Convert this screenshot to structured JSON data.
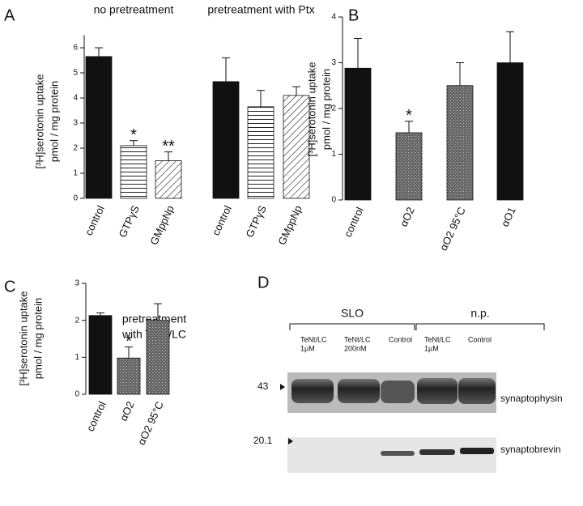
{
  "chart_data": [
    {
      "type": "bar",
      "panel": "A",
      "ylabel": [
        "[³H]serotonin uptake",
        "pmol / mg protein"
      ],
      "ylim": [
        0,
        6.5
      ],
      "yticks": [
        0,
        1,
        2,
        3,
        4,
        5,
        6
      ],
      "groups": [
        {
          "title": "no pretreatment",
          "categories": [
            "control",
            "GTPγS",
            "GMppNp"
          ],
          "values": [
            5.65,
            2.1,
            1.5
          ],
          "errors": [
            0.35,
            0.2,
            0.35
          ],
          "significance": [
            null,
            "*",
            "**"
          ],
          "patterns": [
            "solid",
            "horizontal",
            "diagonal"
          ]
        },
        {
          "title": "pretreatment with Ptx",
          "categories": [
            "control",
            "GTPγS",
            "GMppNp"
          ],
          "values": [
            4.65,
            3.65,
            4.1
          ],
          "errors": [
            0.95,
            0.65,
            0.35
          ],
          "significance": [
            null,
            null,
            null
          ],
          "patterns": [
            "solid",
            "horizontal",
            "diagonal"
          ]
        }
      ]
    },
    {
      "type": "bar",
      "panel": "B",
      "ylabel": [
        "[³H]serotonin uptake",
        "pmol / mg protein"
      ],
      "ylim": [
        0,
        4
      ],
      "yticks": [
        0,
        1,
        2,
        3,
        4
      ],
      "categories": [
        "control",
        "αO2",
        "αO2 95°C",
        "αO1"
      ],
      "values": [
        2.88,
        1.47,
        2.5,
        3.0
      ],
      "errors": [
        0.65,
        0.25,
        0.5,
        0.68
      ],
      "significance": [
        null,
        "*",
        null,
        null
      ],
      "patterns": [
        "solid",
        "stipple",
        "stipple",
        "solid"
      ]
    },
    {
      "type": "bar",
      "panel": "C",
      "title": [
        "pretreatment",
        "with TeNt/LC"
      ],
      "ylabel": [
        "[³H]serotonin uptake",
        "pmol / mg protein"
      ],
      "ylim": [
        0,
        3
      ],
      "yticks": [
        0,
        1,
        2,
        3
      ],
      "categories": [
        "control",
        "αO2",
        "αO2 95°C"
      ],
      "values": [
        2.13,
        0.98,
        2.0
      ],
      "errors": [
        0.07,
        0.3,
        0.45
      ],
      "significance": [
        null,
        "*",
        null
      ],
      "patterns": [
        "solid",
        "stipple",
        "stipple"
      ]
    }
  ],
  "blot": {
    "panel": "D",
    "groups": [
      {
        "label": "SLO",
        "lanes": [
          [
            "TeNt/LC",
            "1µM"
          ],
          [
            "TeNt/LC",
            "200nM"
          ],
          [
            "Control"
          ]
        ]
      },
      {
        "label": "n.p.",
        "lanes": [
          [
            "TeNt/LC",
            "1µM"
          ],
          [
            "Control"
          ]
        ]
      }
    ],
    "markers": [
      "43",
      "20.1"
    ],
    "bands": [
      "synaptophysin",
      "synaptobrevin"
    ]
  }
}
